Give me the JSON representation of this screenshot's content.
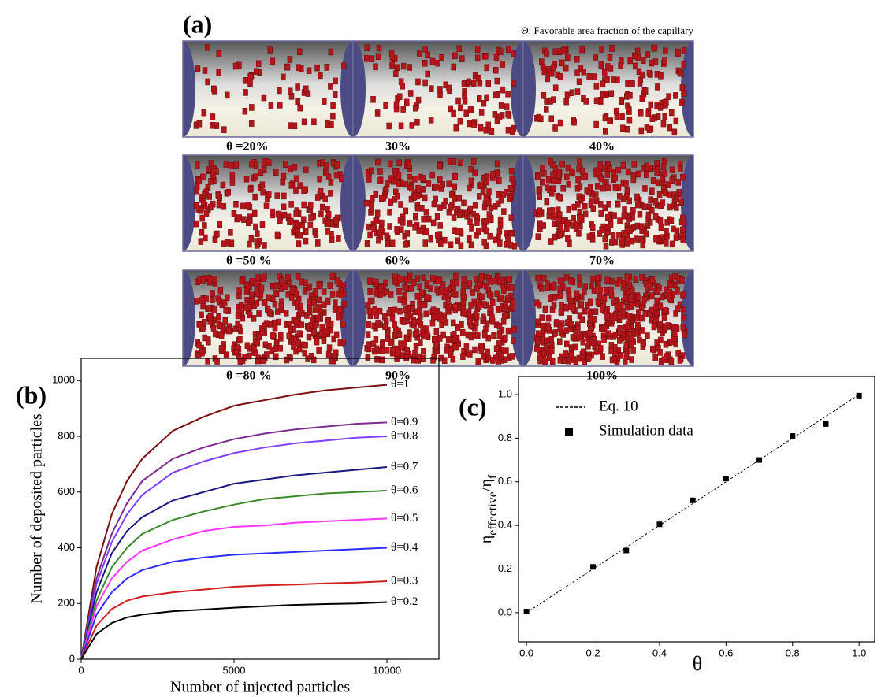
{
  "panel_a": {
    "label": "(a)",
    "note": "Θ: Favorable area fraction of the capillary",
    "captions": [
      "θ =20%",
      "30%",
      "40%",
      "θ =50 %",
      "60%",
      "70%",
      "θ =80 %",
      "90%",
      "100%"
    ]
  },
  "chart_data": [
    {
      "type": "line",
      "label": "(b)",
      "xlabel": "Number of injected particles",
      "ylabel": "Number of deposited particles",
      "x": [
        0,
        500,
        1000,
        1500,
        2000,
        3000,
        4000,
        5000,
        6000,
        7000,
        8000,
        9000,
        10000
      ],
      "xlim": [
        0,
        11700
      ],
      "xticks": [
        0,
        5000,
        10000
      ],
      "ylim": [
        0,
        1080
      ],
      "yticks": [
        0,
        200,
        400,
        600,
        800,
        1000
      ],
      "series": [
        {
          "name": "θ=1",
          "color": "#7b1010",
          "values": [
            0,
            330,
            520,
            640,
            720,
            820,
            870,
            910,
            930,
            950,
            965,
            975,
            985
          ]
        },
        {
          "name": "θ=0.9",
          "color": "#7b2b8b",
          "values": [
            0,
            290,
            450,
            560,
            640,
            720,
            760,
            790,
            810,
            825,
            835,
            845,
            850
          ]
        },
        {
          "name": "θ=0.8",
          "color": "#8040ff",
          "values": [
            0,
            270,
            420,
            520,
            590,
            670,
            710,
            740,
            760,
            775,
            785,
            795,
            800
          ]
        },
        {
          "name": "θ=0.7",
          "color": "#1a1a80",
          "values": [
            0,
            240,
            380,
            460,
            510,
            570,
            600,
            630,
            645,
            660,
            670,
            680,
            690
          ]
        },
        {
          "name": "θ=0.6",
          "color": "#3a8a2a",
          "values": [
            0,
            210,
            330,
            400,
            450,
            500,
            530,
            555,
            575,
            585,
            595,
            600,
            605
          ]
        },
        {
          "name": "θ=0.5",
          "color": "#ff33ff",
          "values": [
            0,
            190,
            290,
            350,
            390,
            430,
            460,
            475,
            480,
            490,
            495,
            500,
            505
          ]
        },
        {
          "name": "θ=0.4",
          "color": "#2d2dff",
          "values": [
            0,
            160,
            240,
            290,
            320,
            350,
            365,
            375,
            380,
            385,
            390,
            395,
            400
          ]
        },
        {
          "name": "θ=0.3",
          "color": "#d02020",
          "values": [
            0,
            120,
            180,
            210,
            225,
            240,
            250,
            260,
            265,
            268,
            272,
            275,
            280
          ]
        },
        {
          "name": "θ=0.2",
          "color": "#000000",
          "values": [
            0,
            90,
            130,
            150,
            160,
            172,
            178,
            185,
            190,
            195,
            198,
            200,
            205
          ]
        }
      ]
    },
    {
      "type": "scatter",
      "label": "(c)",
      "xlabel": "θ",
      "ylabel": [
        "η",
        "effective",
        "/η",
        "f"
      ],
      "xlim": [
        -0.024,
        1.047
      ],
      "ylim": [
        -0.134,
        1.083
      ],
      "xticks": [
        {
          "value": 0,
          "label": "0.0"
        },
        0.2,
        0.4,
        0.6,
        0.8,
        {
          "value": 1,
          "label": "1.0"
        }
      ],
      "yticks": [
        {
          "value": 0,
          "label": "0.0"
        },
        0.2,
        0.4,
        0.6,
        0.8,
        {
          "value": 1,
          "label": "1.0"
        }
      ],
      "series": [
        {
          "name": "Eq. 10",
          "type": "line",
          "dash": true,
          "color": "#000000",
          "x": [
            0,
            1
          ],
          "values": [
            0,
            1
          ]
        },
        {
          "name": "Simulation data",
          "type": "scatter",
          "color": "#000000",
          "x": [
            0,
            0.2,
            0.3,
            0.4,
            0.5,
            0.6,
            0.7,
            0.8,
            0.9,
            1.0
          ],
          "values": [
            0.005,
            0.21,
            0.285,
            0.405,
            0.515,
            0.615,
            0.7,
            0.81,
            0.865,
            0.995
          ]
        }
      ]
    }
  ]
}
